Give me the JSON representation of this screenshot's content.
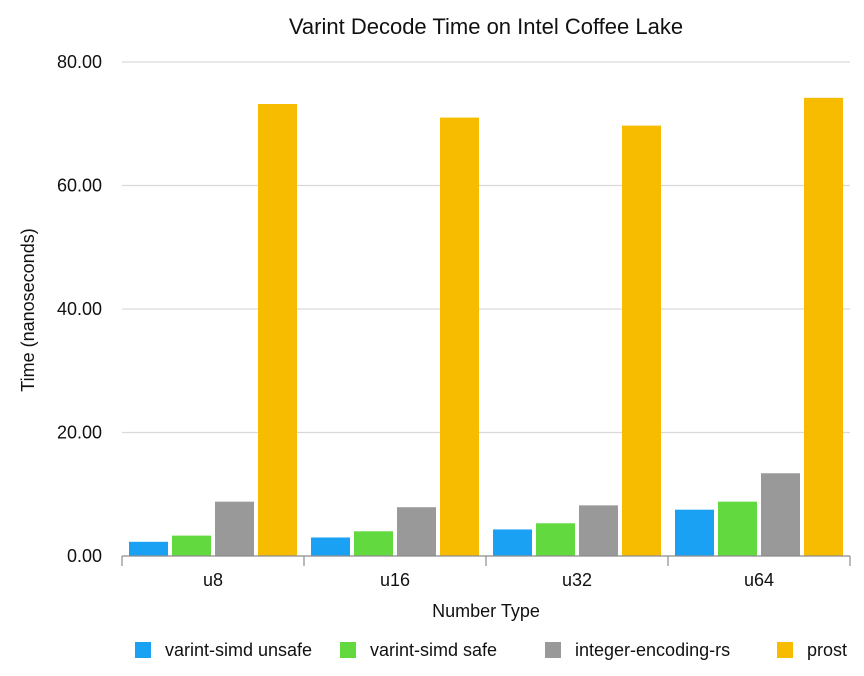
{
  "chart_data": {
    "type": "bar",
    "title": "Varint Decode Time on Intel Coffee Lake",
    "xlabel": "Number Type",
    "ylabel": "Time (nanoseconds)",
    "categories": [
      "u8",
      "u16",
      "u32",
      "u64"
    ],
    "ylim": [
      0,
      80
    ],
    "yticks": [
      "0.00",
      "20.00",
      "40.00",
      "60.00",
      "80.00"
    ],
    "grid": true,
    "legend_position": "bottom",
    "series": [
      {
        "name": "varint-simd unsafe",
        "color": "#1aa1f4",
        "values": [
          2.3,
          3.0,
          4.3,
          7.5
        ]
      },
      {
        "name": "varint-simd safe",
        "color": "#62d93e",
        "values": [
          3.3,
          4.0,
          5.3,
          8.8
        ]
      },
      {
        "name": "integer-encoding-rs",
        "color": "#999999",
        "values": [
          8.8,
          7.9,
          8.2,
          13.4
        ]
      },
      {
        "name": "prost",
        "color": "#f7bc00",
        "values": [
          73.2,
          71.0,
          69.7,
          74.2
        ]
      }
    ]
  }
}
